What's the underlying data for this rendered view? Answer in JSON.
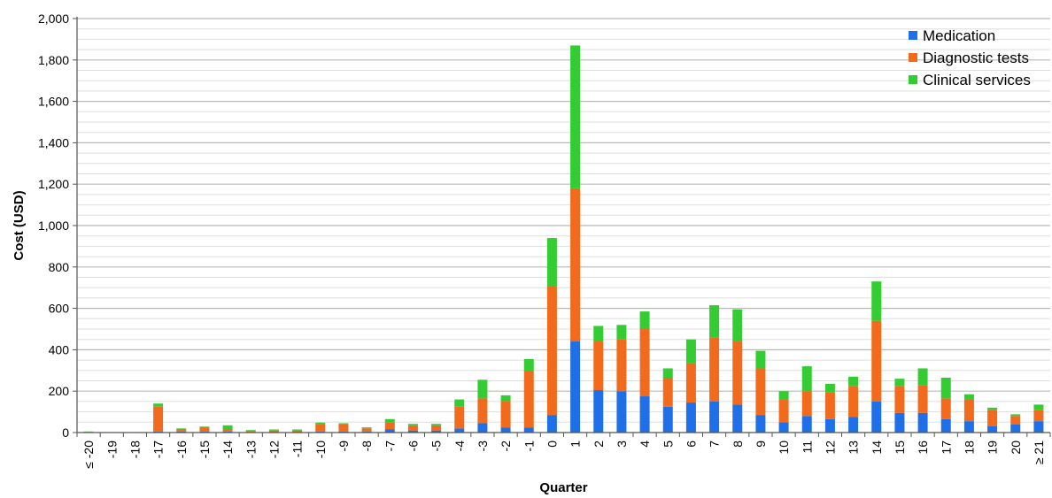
{
  "chart_data": {
    "type": "bar",
    "stacked": true,
    "title": "",
    "xlabel": "Quarter",
    "ylabel": "Cost (USD)",
    "ylim": [
      0,
      2000
    ],
    "yticks": [
      "0",
      "200",
      "400",
      "600",
      "800",
      "1,000",
      "1,200",
      "1,400",
      "1,600",
      "1,800",
      "2,000"
    ],
    "ytick_values": [
      0,
      200,
      400,
      600,
      800,
      1000,
      1200,
      1400,
      1600,
      1800,
      2000
    ],
    "grid": true,
    "legend_position": "top-right",
    "categories": [
      "≤ -20",
      "-19",
      "-18",
      "-17",
      "-16",
      "-15",
      "-14",
      "-13",
      "-12",
      "-11",
      "-10",
      "-9",
      "-8",
      "-7",
      "-6",
      "-5",
      "-4",
      "-3",
      "-2",
      "-1",
      "0",
      "1",
      "2",
      "3",
      "4",
      "5",
      "6",
      "7",
      "8",
      "9",
      "10",
      "11",
      "12",
      "13",
      "14",
      "15",
      "16",
      "17",
      "18",
      "19",
      "20",
      "≥ 21"
    ],
    "series": [
      {
        "name": "Medication",
        "color": "#1f6fe8",
        "values": [
          0,
          0,
          0,
          5,
          5,
          5,
          5,
          2,
          2,
          2,
          5,
          5,
          5,
          15,
          10,
          10,
          20,
          45,
          25,
          25,
          85,
          440,
          205,
          200,
          175,
          125,
          145,
          150,
          135,
          85,
          50,
          80,
          65,
          75,
          150,
          95,
          95,
          65,
          55,
          30,
          40,
          55
        ]
      },
      {
        "name": "Diagnostic tests",
        "color": "#f26a1b",
        "values": [
          3,
          0,
          0,
          120,
          10,
          22,
          10,
          5,
          8,
          8,
          35,
          35,
          15,
          35,
          25,
          25,
          105,
          120,
          125,
          270,
          620,
          740,
          235,
          250,
          325,
          140,
          190,
          310,
          305,
          225,
          110,
          120,
          130,
          150,
          390,
          130,
          135,
          100,
          105,
          80,
          40,
          55
        ]
      },
      {
        "name": "Clinical services",
        "color": "#33cc33",
        "values": [
          2,
          0,
          0,
          15,
          5,
          2,
          20,
          5,
          5,
          5,
          8,
          5,
          5,
          15,
          7,
          7,
          35,
          90,
          30,
          60,
          235,
          690,
          75,
          70,
          85,
          45,
          115,
          155,
          155,
          85,
          40,
          120,
          40,
          45,
          190,
          35,
          80,
          100,
          25,
          10,
          8,
          25
        ]
      }
    ]
  }
}
